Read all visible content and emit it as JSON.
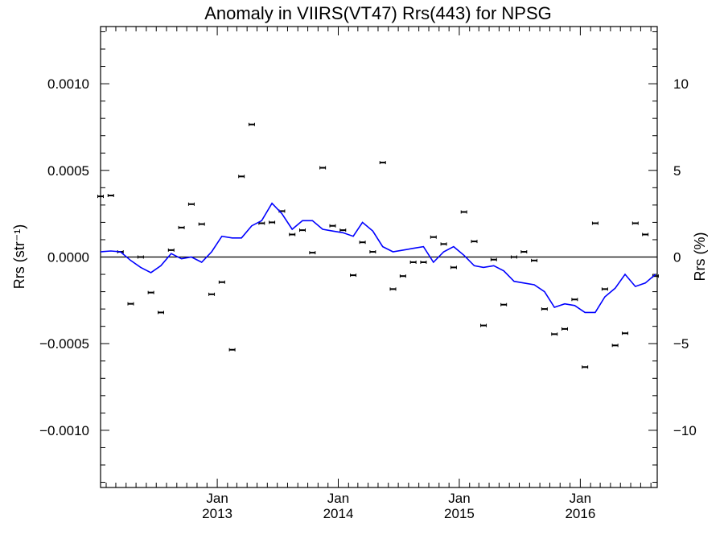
{
  "chart_data": {
    "type": "scatter",
    "title": "Anomaly in VIIRS(VT47) Rrs(443) for NPSG",
    "ylabel_left": "Rrs (str⁻¹)",
    "ylabel_right": "Rrs (%)",
    "ylim": [
      -0.00133,
      0.00133
    ],
    "ylim_right": [
      -13.3,
      13.3
    ],
    "xlim": [
      "2012-01-15",
      "2016-08-20"
    ],
    "y_ticks_left": [
      {
        "value": 0.001,
        "label": "0.0010"
      },
      {
        "value": 0.0005,
        "label": "0.0005"
      },
      {
        "value": 0.0,
        "label": "0.0000"
      },
      {
        "value": -0.0005,
        "label": "−0.0005"
      },
      {
        "value": -0.001,
        "label": "−0.0010"
      }
    ],
    "y_ticks_right": [
      {
        "value": 10,
        "label": "10"
      },
      {
        "value": 5,
        "label": "5"
      },
      {
        "value": 0,
        "label": "0"
      },
      {
        "value": -5,
        "label": "−5"
      },
      {
        "value": -10,
        "label": "−10"
      }
    ],
    "x_ticks": [
      {
        "date": "2013-01-01",
        "month": "Jan",
        "year": "2013"
      },
      {
        "date": "2014-01-01",
        "month": "Jan",
        "year": "2014"
      },
      {
        "date": "2015-01-01",
        "month": "Jan",
        "year": "2015"
      },
      {
        "date": "2016-01-01",
        "month": "Jan",
        "year": "2016"
      }
    ],
    "series": [
      {
        "color": "#000000",
        "style": "points-with-errorbars",
        "x": [
          "2012-01-15",
          "2012-02-15",
          "2012-03-15",
          "2012-04-15",
          "2012-05-15",
          "2012-06-15",
          "2012-07-15",
          "2012-08-15",
          "2012-09-15",
          "2012-10-15",
          "2012-11-15",
          "2012-12-15",
          "2013-01-15",
          "2013-02-15",
          "2013-03-15",
          "2013-04-15",
          "2013-05-15",
          "2013-06-15",
          "2013-07-15",
          "2013-08-15",
          "2013-09-15",
          "2013-10-15",
          "2013-11-15",
          "2013-12-15",
          "2014-01-15",
          "2014-02-15",
          "2014-03-15",
          "2014-04-15",
          "2014-05-15",
          "2014-06-15",
          "2014-07-15",
          "2014-08-15",
          "2014-09-15",
          "2014-10-15",
          "2014-11-15",
          "2014-12-15",
          "2015-01-15",
          "2015-02-15",
          "2015-03-15",
          "2015-04-15",
          "2015-05-15",
          "2015-06-15",
          "2015-07-15",
          "2015-08-15",
          "2015-09-15",
          "2015-10-15",
          "2015-11-15",
          "2015-12-15",
          "2016-01-15",
          "2016-02-15",
          "2016-03-15",
          "2016-04-15",
          "2016-05-15",
          "2016-06-15",
          "2016-07-15",
          "2016-08-15"
        ],
        "y": [
          0.00035,
          0.000355,
          3e-05,
          -0.00027,
          0.0,
          -0.000205,
          -0.00032,
          4e-05,
          0.00017,
          0.000305,
          0.00019,
          -0.000215,
          -0.000145,
          -0.000535,
          0.000465,
          0.000765,
          0.000195,
          0.0002,
          0.000265,
          0.00013,
          0.000155,
          2.5e-05,
          0.000515,
          0.00018,
          0.000155,
          -0.000105,
          8.5e-05,
          3e-05,
          0.000545,
          -0.000185,
          -0.00011,
          -3e-05,
          -3e-05,
          0.000115,
          7.5e-05,
          -6e-05,
          0.00026,
          9e-05,
          -0.000395,
          -1.5e-05,
          -0.000275,
          0.0,
          3e-05,
          -2e-05,
          -0.0003,
          -0.000445,
          -0.000415,
          -0.000245,
          -0.000635,
          0.000195,
          -0.000185,
          -0.00051,
          -0.00044,
          0.000195,
          0.00013,
          -0.00011
        ]
      },
      {
        "color": "#0000ff",
        "style": "line",
        "x": [
          "2012-01-15",
          "2012-02-15",
          "2012-03-15",
          "2012-04-15",
          "2012-05-15",
          "2012-06-15",
          "2012-07-15",
          "2012-08-15",
          "2012-09-15",
          "2012-10-15",
          "2012-11-15",
          "2012-12-15",
          "2013-01-15",
          "2013-02-15",
          "2013-03-15",
          "2013-04-15",
          "2013-05-15",
          "2013-06-15",
          "2013-07-15",
          "2013-08-15",
          "2013-09-15",
          "2013-10-15",
          "2013-11-15",
          "2013-12-15",
          "2014-01-15",
          "2014-02-15",
          "2014-03-15",
          "2014-04-15",
          "2014-05-15",
          "2014-06-15",
          "2014-07-15",
          "2014-08-15",
          "2014-09-15",
          "2014-10-15",
          "2014-11-15",
          "2014-12-15",
          "2015-01-15",
          "2015-02-15",
          "2015-03-15",
          "2015-04-15",
          "2015-05-15",
          "2015-06-15",
          "2015-07-15",
          "2015-08-15",
          "2015-09-15",
          "2015-10-15",
          "2015-11-15",
          "2015-12-15",
          "2016-01-15",
          "2016-02-15",
          "2016-03-15",
          "2016-04-15",
          "2016-05-15",
          "2016-06-15",
          "2016-07-15",
          "2016-08-15"
        ],
        "y": [
          3e-05,
          3.5e-05,
          3e-05,
          -2e-05,
          -6e-05,
          -9e-05,
          -5e-05,
          2e-05,
          -1e-05,
          0.0,
          -3e-05,
          3e-05,
          0.00012,
          0.00011,
          0.00011,
          0.00018,
          0.00021,
          0.00031,
          0.00025,
          0.00016,
          0.00021,
          0.00021,
          0.00016,
          0.00015,
          0.00014,
          0.00012,
          0.0002,
          0.00015,
          6e-05,
          3e-05,
          4e-05,
          5e-05,
          6e-05,
          -3e-05,
          3e-05,
          6e-05,
          1e-05,
          -5e-05,
          -6e-05,
          -5e-05,
          -8e-05,
          -0.00014,
          -0.00015,
          -0.00016,
          -0.0002,
          -0.00029,
          -0.00027,
          -0.00028,
          -0.00032,
          -0.00032,
          -0.00023,
          -0.00018,
          -0.0001,
          -0.00017,
          -0.00015,
          -0.0001
        ]
      }
    ]
  }
}
